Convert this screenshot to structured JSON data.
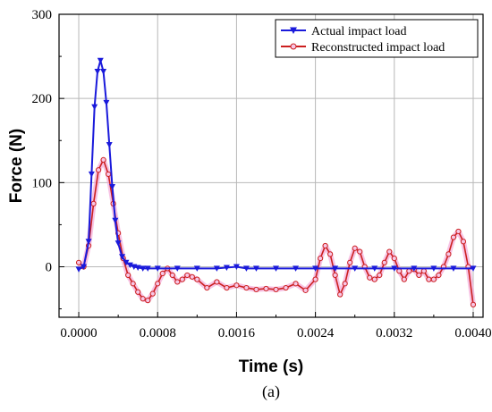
{
  "chart_data": {
    "type": "line",
    "xlabel": "Time (s)",
    "ylabel": "Force (N)",
    "caption": "(a)",
    "xlim": [
      -0.0002,
      0.0041
    ],
    "ylim": [
      -60,
      300
    ],
    "x_ticks": [
      0.0,
      0.0008,
      0.0016,
      0.0024,
      0.0032,
      0.004
    ],
    "x_tick_labels": [
      "0.0000",
      "0.0008",
      "0.0016",
      "0.0024",
      "0.0032",
      "0.0040"
    ],
    "y_ticks": [
      0,
      100,
      200,
      300
    ],
    "y_tick_labels": [
      "0",
      "100",
      "200",
      "300"
    ],
    "grid": true,
    "legend_position": "top-right",
    "series": [
      {
        "name": "Actual impact load",
        "color": "#1a1adb",
        "marker": "triangle-down",
        "x": [
          0.0,
          5e-05,
          0.0001,
          0.00013,
          0.00016,
          0.00019,
          0.00022,
          0.00025,
          0.00028,
          0.00031,
          0.00034,
          0.00037,
          0.0004,
          0.00044,
          0.00048,
          0.00052,
          0.00056,
          0.0006,
          0.00065,
          0.0007,
          0.0008,
          0.001,
          0.0012,
          0.0014,
          0.0015,
          0.0016,
          0.0017,
          0.0018,
          0.002,
          0.0022,
          0.0024,
          0.0026,
          0.0028,
          0.003,
          0.0032,
          0.0034,
          0.0036,
          0.0038,
          0.004
        ],
        "y": [
          -3,
          0,
          30,
          110,
          190,
          232,
          245,
          232,
          195,
          145,
          95,
          55,
          28,
          12,
          5,
          2,
          0,
          -1,
          -2,
          -2,
          -2,
          -2,
          -2,
          -2,
          -1,
          0,
          -2,
          -2,
          -2,
          -2,
          -2,
          -2,
          -2,
          -2,
          -2,
          -2,
          -2,
          -2,
          -2
        ]
      },
      {
        "name": "Reconstructed impact load",
        "color": "#cc1f1f",
        "marker": "circle-open",
        "x": [
          0.0,
          5e-05,
          0.0001,
          0.00015,
          0.0002,
          0.00025,
          0.0003,
          0.00035,
          0.0004,
          0.00045,
          0.0005,
          0.00055,
          0.0006,
          0.00065,
          0.0007,
          0.00075,
          0.0008,
          0.00085,
          0.0009,
          0.00095,
          0.001,
          0.00105,
          0.0011,
          0.00115,
          0.0012,
          0.0013,
          0.0014,
          0.0015,
          0.0016,
          0.0017,
          0.0018,
          0.0019,
          0.002,
          0.0021,
          0.0022,
          0.0023,
          0.0024,
          0.00245,
          0.0025,
          0.00255,
          0.0026,
          0.00265,
          0.0027,
          0.00275,
          0.0028,
          0.00285,
          0.0029,
          0.00295,
          0.003,
          0.00305,
          0.0031,
          0.00315,
          0.0032,
          0.00325,
          0.0033,
          0.00335,
          0.0034,
          0.00345,
          0.0035,
          0.00355,
          0.0036,
          0.00365,
          0.0037,
          0.00375,
          0.0038,
          0.00385,
          0.0039,
          0.00395,
          0.004
        ],
        "y": [
          5,
          0,
          25,
          75,
          115,
          127,
          110,
          75,
          40,
          10,
          -10,
          -20,
          -30,
          -38,
          -40,
          -32,
          -20,
          -8,
          -2,
          -10,
          -18,
          -15,
          -10,
          -12,
          -15,
          -25,
          -18,
          -25,
          -22,
          -25,
          -27,
          -26,
          -27,
          -25,
          -20,
          -28,
          -15,
          10,
          25,
          15,
          -10,
          -33,
          -20,
          5,
          22,
          18,
          0,
          -13,
          -15,
          -10,
          5,
          18,
          10,
          -5,
          -15,
          -5,
          -3,
          -10,
          -5,
          -15,
          -15,
          -10,
          0,
          15,
          35,
          42,
          30,
          0,
          -45
        ]
      }
    ]
  }
}
